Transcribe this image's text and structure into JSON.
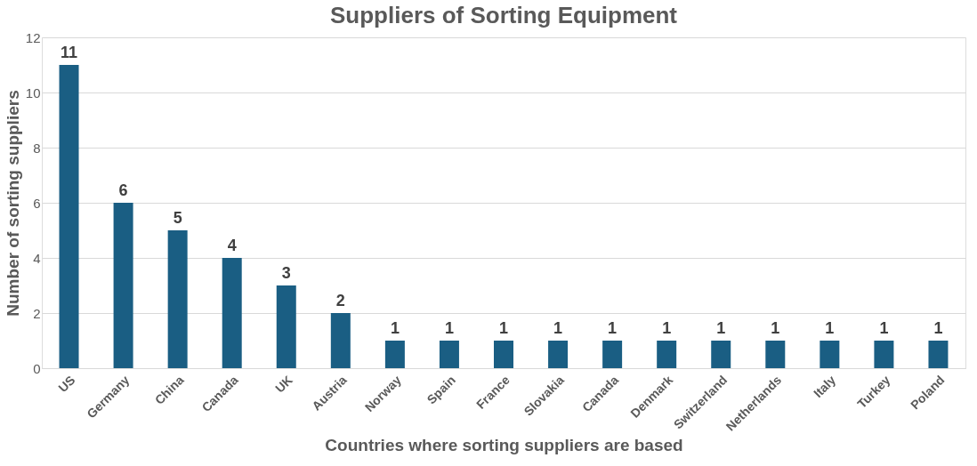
{
  "chart_data": {
    "type": "bar",
    "title": "Suppliers of Sorting Equipment",
    "xlabel": "Countries where sorting suppliers are based",
    "ylabel": "Number of sorting suppliers",
    "categories": [
      "US",
      "Germany",
      "China",
      "Canada",
      "UK",
      "Austria",
      "Norway",
      "Spain",
      "France",
      "Slovakia",
      "Canada",
      "Denmark",
      "Switzerland",
      "Netherlands",
      "Italy",
      "Turkey",
      "Poland"
    ],
    "values": [
      11,
      6,
      5,
      4,
      3,
      2,
      1,
      1,
      1,
      1,
      1,
      1,
      1,
      1,
      1,
      1,
      1
    ],
    "color": "#1a5e83",
    "ylim": [
      0,
      12
    ],
    "yticks": [
      0,
      2,
      4,
      6,
      8,
      10,
      12
    ],
    "grid": "y",
    "data_labels": true
  }
}
